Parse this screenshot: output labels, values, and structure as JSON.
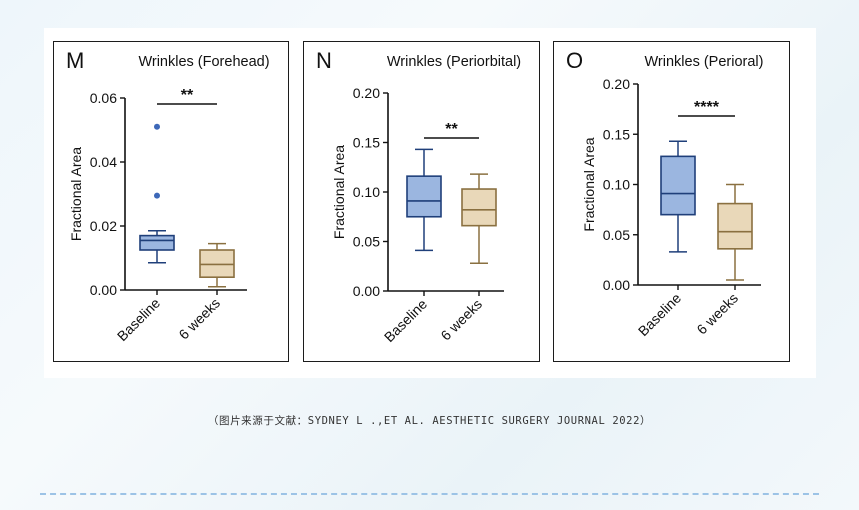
{
  "caption": "（图片来源于文献：SYDNEY L .,ET AL. AESTHETIC SURGERY JOURNAL 2022）",
  "colors": {
    "baseline_fill": "#9bb6e0",
    "baseline_stroke": "#1f3f7a",
    "weeks_fill": "#e9d8b9",
    "weeks_stroke": "#8a7040",
    "outlier": "#3d68b8"
  },
  "chart_data": [
    {
      "type": "box",
      "panel_letter": "M",
      "title": "Wrinkles (Forehead)",
      "ylabel": "Fractional Area",
      "categories": [
        "Baseline",
        "6 weeks"
      ],
      "ylim": [
        0,
        0.06
      ],
      "yticks": [
        0.0,
        0.02,
        0.04,
        0.06
      ],
      "ytick_labels": [
        "0.00",
        "0.02",
        "0.04",
        "0.06"
      ],
      "boxes": [
        {
          "name": "Baseline",
          "min": 0.0085,
          "q1": 0.0125,
          "median": 0.0155,
          "q3": 0.017,
          "max": 0.0185,
          "outliers": [
            0.0295,
            0.051
          ]
        },
        {
          "name": "6 weeks",
          "min": 0.001,
          "q1": 0.004,
          "median": 0.008,
          "q3": 0.0125,
          "max": 0.0145,
          "outliers": []
        }
      ],
      "significance": "**"
    },
    {
      "type": "box",
      "panel_letter": "N",
      "title": "Wrinkles (Periorbital)",
      "ylabel": "Fractional Area",
      "categories": [
        "Baseline",
        "6 weeks"
      ],
      "ylim": [
        0,
        0.2
      ],
      "yticks": [
        0.0,
        0.05,
        0.1,
        0.15,
        0.2
      ],
      "ytick_labels": [
        "0.00",
        "0.05",
        "0.10",
        "0.15",
        "0.20"
      ],
      "boxes": [
        {
          "name": "Baseline",
          "min": 0.041,
          "q1": 0.075,
          "median": 0.091,
          "q3": 0.116,
          "max": 0.143,
          "outliers": []
        },
        {
          "name": "6 weeks",
          "min": 0.028,
          "q1": 0.066,
          "median": 0.082,
          "q3": 0.103,
          "max": 0.118,
          "outliers": []
        }
      ],
      "significance": "**"
    },
    {
      "type": "box",
      "panel_letter": "O",
      "title": "Wrinkles (Perioral)",
      "ylabel": "Fractional Area",
      "categories": [
        "Baseline",
        "6 weeks"
      ],
      "ylim": [
        0,
        0.2
      ],
      "yticks": [
        0.0,
        0.05,
        0.1,
        0.15,
        0.2
      ],
      "ytick_labels": [
        "0.00",
        "0.05",
        "0.10",
        "0.15",
        "0.20"
      ],
      "boxes": [
        {
          "name": "Baseline",
          "min": 0.033,
          "q1": 0.07,
          "median": 0.091,
          "q3": 0.128,
          "max": 0.143,
          "outliers": []
        },
        {
          "name": "6 weeks",
          "min": 0.005,
          "q1": 0.036,
          "median": 0.053,
          "q3": 0.081,
          "max": 0.1,
          "outliers": []
        }
      ],
      "significance": "****"
    }
  ]
}
